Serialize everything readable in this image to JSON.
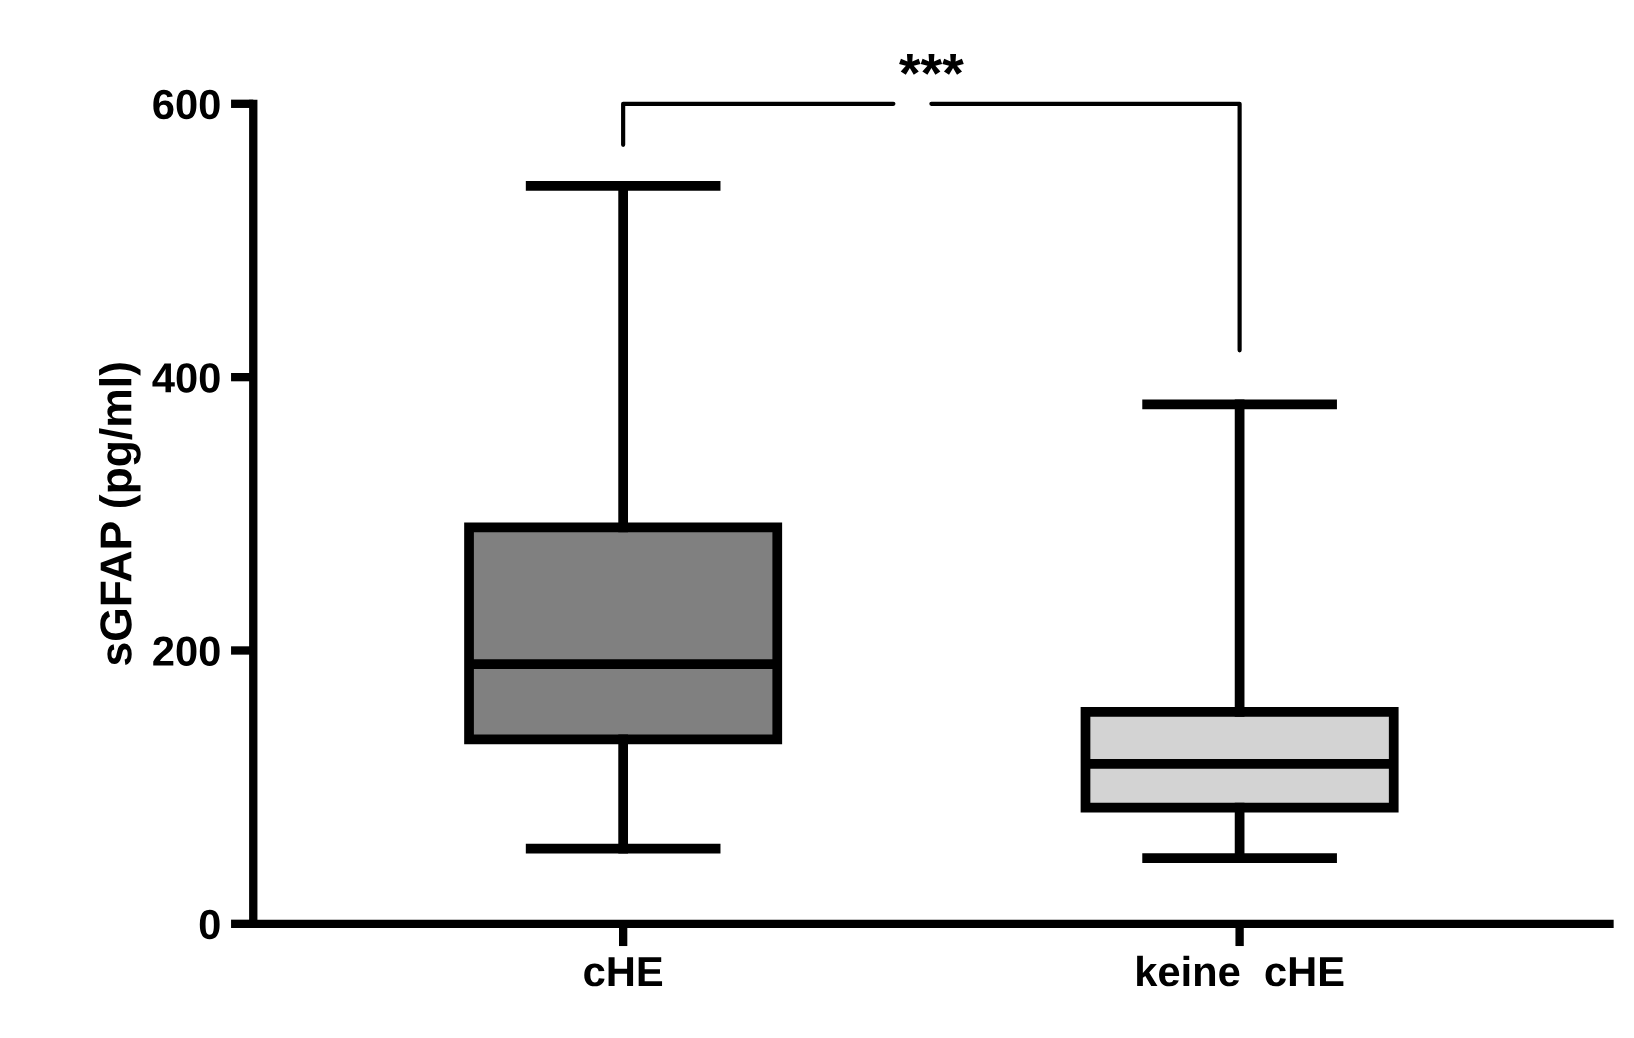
{
  "chart_data": {
    "type": "box",
    "ylabel": "sGFAP (pg/ml)",
    "categories": [
      "cHE",
      "keine  cHE"
    ],
    "boxes": [
      {
        "low": 55,
        "q1": 135,
        "median": 190,
        "q3": 290,
        "high": 540
      },
      {
        "low": 48,
        "q1": 85,
        "median": 117,
        "q3": 155,
        "high": 380
      }
    ],
    "colors": [
      "#808080",
      "#d3d3d3"
    ],
    "ylim": [
      0,
      600
    ],
    "yticks": [
      0,
      200,
      400,
      600
    ],
    "grid": false,
    "legend": false,
    "annotations": [
      "***"
    ]
  }
}
